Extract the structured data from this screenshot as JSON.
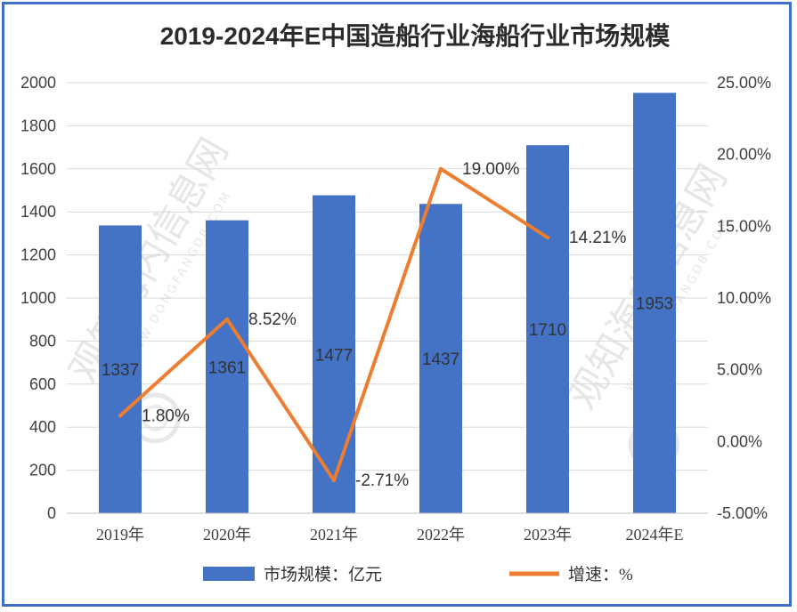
{
  "chart_data": {
    "type": "bar",
    "title": "2019-2024年E中国造船行业海船行业市场规模",
    "categories": [
      "2019年",
      "2020年",
      "2021年",
      "2022年",
      "2023年",
      "2024年E"
    ],
    "series": [
      {
        "name": "市场规模：亿元",
        "type": "bar",
        "axis": "left",
        "values": [
          1337,
          1361,
          1477,
          1437,
          1710,
          1953
        ],
        "labels": [
          "1337",
          "1361",
          "1477",
          "1437",
          "1710",
          "1953"
        ],
        "color": "#4472c4"
      },
      {
        "name": "增速：%",
        "type": "line",
        "axis": "right",
        "values": [
          1.8,
          8.52,
          -2.71,
          19.0,
          14.21,
          null
        ],
        "labels": [
          "1.80%",
          "8.52%",
          "-2.71%",
          "19.00%",
          "14.21%",
          ""
        ],
        "color": "#ed7d31"
      }
    ],
    "y_left": {
      "min": 0,
      "max": 2000,
      "ticks": [
        "0",
        "200",
        "400",
        "600",
        "800",
        "1000",
        "1200",
        "1400",
        "1600",
        "1800",
        "2000"
      ]
    },
    "y_right": {
      "min": -5,
      "max": 25,
      "ticks": [
        "-5.00%",
        "0.00%",
        "5.00%",
        "10.00%",
        "15.00%",
        "20.00%",
        "25.00%"
      ]
    },
    "grid": true,
    "legend": "bottom",
    "watermark": "观知海内信息网",
    "watermark_sub": "WWW.DONGFANGDB.COM"
  }
}
